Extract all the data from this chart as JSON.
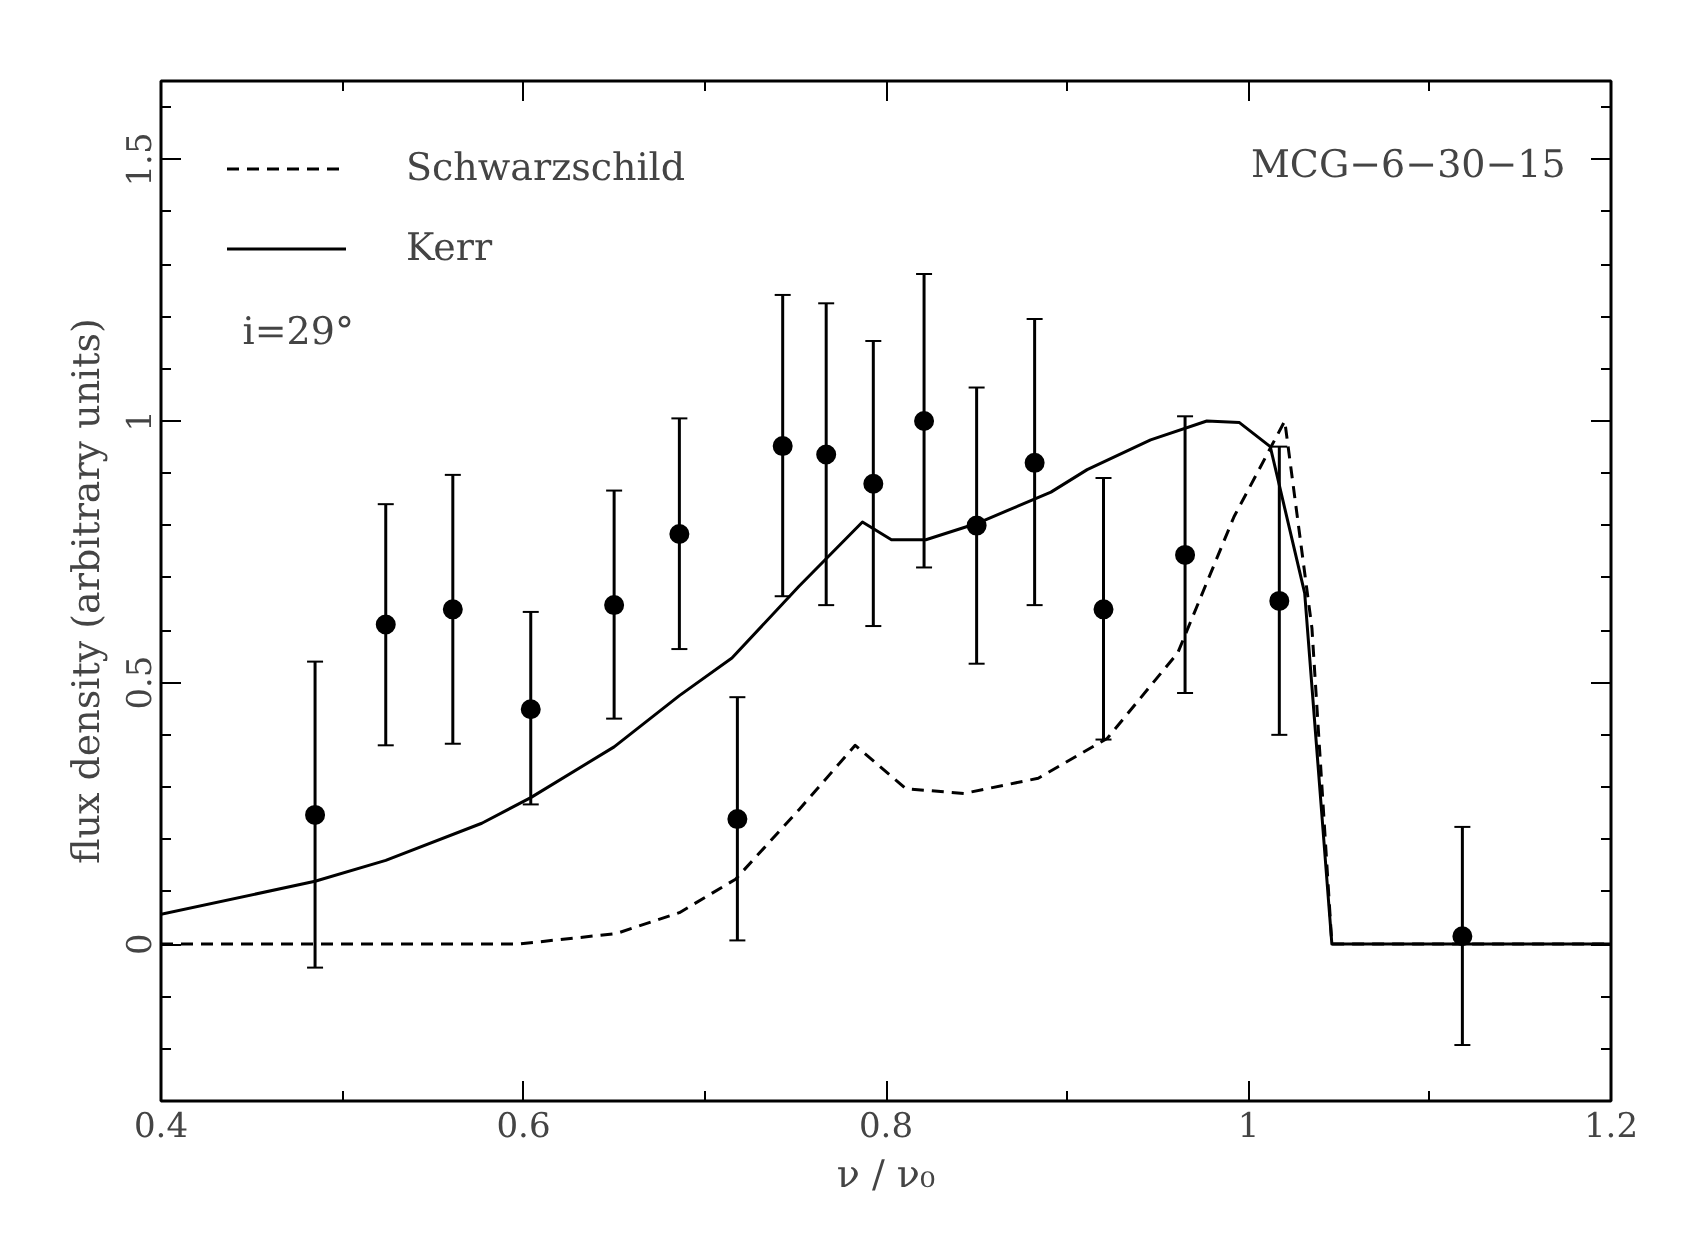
{
  "chart_data": {
    "type": "line",
    "xlabel": "ν / ν₀",
    "ylabel": "flux density (arbitrary units)",
    "xlim": [
      0.4,
      1.2
    ],
    "ylim": [
      -0.3,
      1.65
    ],
    "xticks": [
      0.4,
      0.6,
      0.8,
      1,
      1.2
    ],
    "yticks": [
      0,
      0.5,
      1,
      1.5
    ],
    "legend": "top left",
    "grid": false,
    "annotations": [
      "MCG−6−30−15",
      "i=29°"
    ],
    "series": [
      {
        "name": "Schwarzschild",
        "line_style": "dashed",
        "marker": "none",
        "color": "#000000",
        "x": [
          0.4,
          0.597,
          0.651,
          0.686,
          0.717,
          0.752,
          0.783,
          0.811,
          0.843,
          0.884,
          0.922,
          0.961,
          0.992,
          1.02,
          1.035,
          1.046,
          1.2
        ],
        "values": [
          0,
          0,
          0.02,
          0.06,
          0.124,
          0.257,
          0.38,
          0.297,
          0.288,
          0.317,
          0.393,
          0.557,
          0.817,
          1.0,
          0.604,
          0,
          0
        ]
      },
      {
        "name": "Kerr",
        "line_style": "solid",
        "marker": "none",
        "color": "#000000",
        "x": [
          0.4,
          0.485,
          0.524,
          0.577,
          0.604,
          0.65,
          0.686,
          0.715,
          0.752,
          0.787,
          0.803,
          0.822,
          0.85,
          0.891,
          0.911,
          0.946,
          0.977,
          0.995,
          1.012,
          1.031,
          1.046,
          1.2
        ],
        "values": [
          0.057,
          0.12,
          0.16,
          0.231,
          0.28,
          0.377,
          0.475,
          0.547,
          0.684,
          0.807,
          0.773,
          0.773,
          0.804,
          0.864,
          0.907,
          0.964,
          1.0,
          0.997,
          0.951,
          0.671,
          0,
          0
        ]
      },
      {
        "type": "scatter",
        "marker": "circle",
        "color": "#000000",
        "x": [
          0.485,
          0.524,
          0.561,
          0.604,
          0.65,
          0.686,
          0.718,
          0.743,
          0.767,
          0.793,
          0.821,
          0.85,
          0.882,
          0.92,
          0.965,
          1.017,
          1.118
        ],
        "values": [
          0.247,
          0.611,
          0.64,
          0.449,
          0.648,
          0.784,
          0.239,
          0.952,
          0.936,
          0.88,
          1.0,
          0.8,
          0.92,
          0.64,
          0.744,
          0.656,
          0.015
        ],
        "errors": [
          [
            -0.045,
            0.54
          ],
          [
            0.38,
            0.841
          ],
          [
            0.383,
            0.897
          ],
          [
            0.267,
            0.635
          ],
          [
            0.431,
            0.867
          ],
          [
            0.564,
            1.005
          ],
          [
            0.007,
            0.472
          ],
          [
            0.665,
            1.241
          ],
          [
            0.648,
            1.225
          ],
          [
            0.608,
            1.153
          ],
          [
            0.72,
            1.281
          ],
          [
            0.536,
            1.064
          ],
          [
            0.648,
            1.195
          ],
          [
            0.391,
            0.891
          ],
          [
            0.48,
            1.009
          ],
          [
            0.4,
            0.951
          ],
          [
            -0.193,
            0.224
          ]
        ]
      }
    ]
  }
}
